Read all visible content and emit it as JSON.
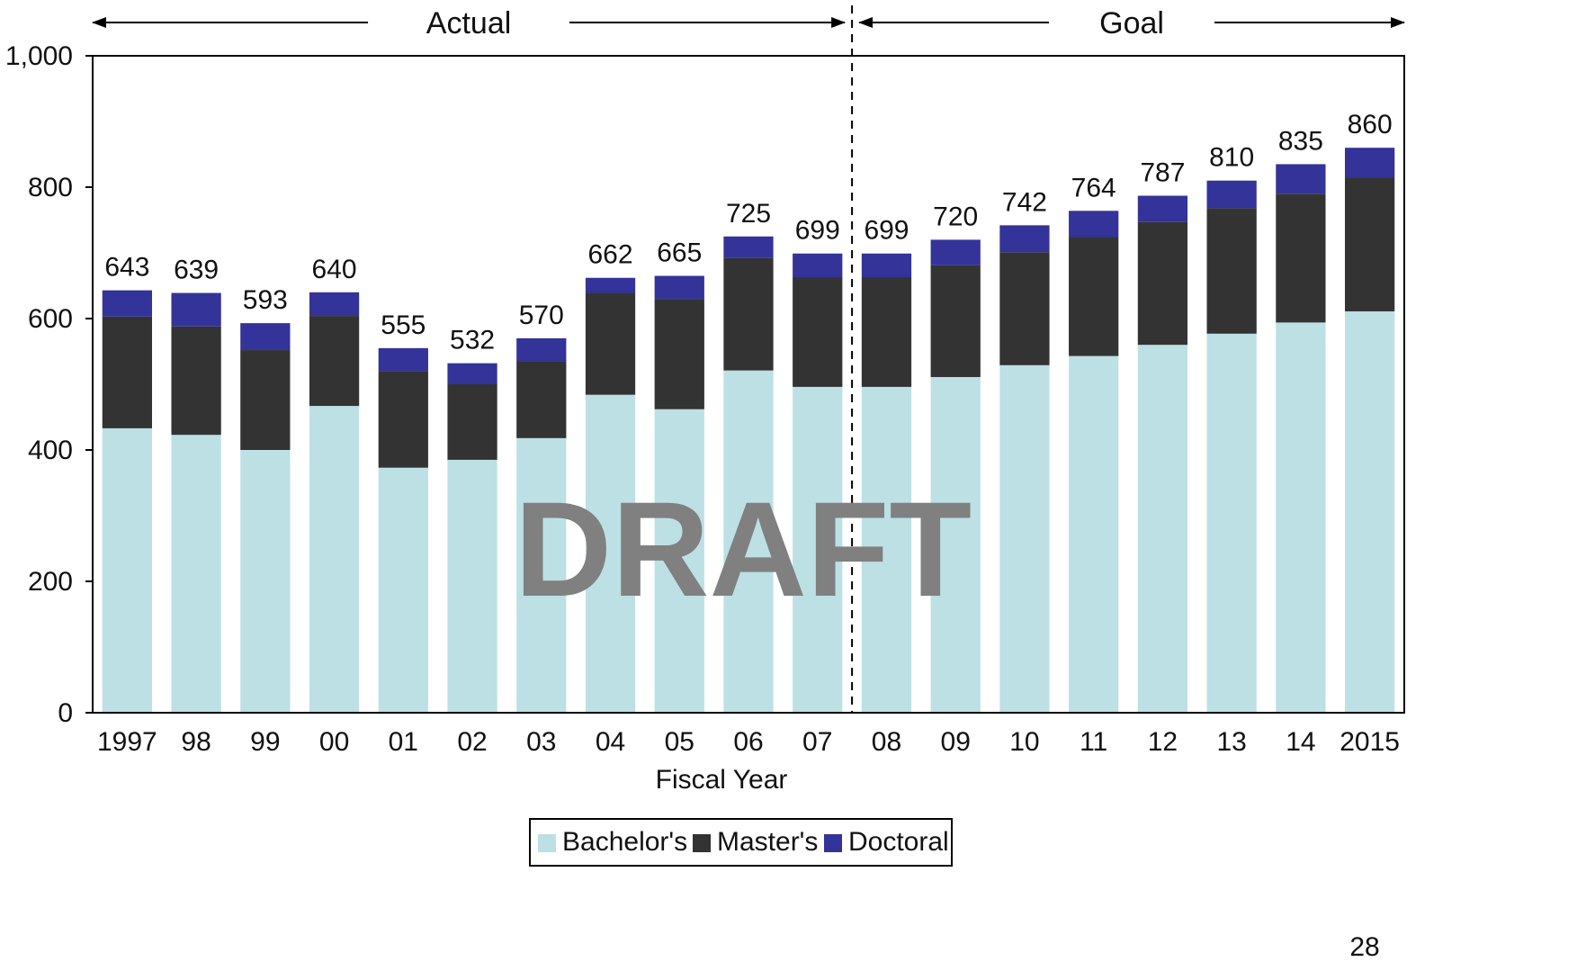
{
  "chart_data": {
    "type": "bar",
    "stacked": true,
    "xlabel": "Fiscal Year",
    "ylabel": "",
    "ylim": [
      0,
      1000
    ],
    "yticks": [
      "0",
      "200",
      "400",
      "600",
      "800",
      "1,000"
    ],
    "categories": [
      "1997",
      "98",
      "99",
      "00",
      "01",
      "02",
      "03",
      "04",
      "05",
      "06",
      "07",
      "08",
      "09",
      "10",
      "11",
      "12",
      "13",
      "14",
      "2015"
    ],
    "series": [
      {
        "name": "Bachelor's",
        "color": "#bce0e4",
        "values": [
          433,
          423,
          400,
          467,
          373,
          385,
          418,
          484,
          462,
          521,
          496,
          496,
          511,
          529,
          543,
          560,
          577,
          594,
          611
        ]
      },
      {
        "name": "Master's",
        "color": "#333333",
        "values": [
          170,
          165,
          152,
          137,
          147,
          115,
          117,
          155,
          168,
          171,
          167,
          167,
          170,
          172,
          181,
          187,
          191,
          196,
          204
        ]
      },
      {
        "name": "Doctoral",
        "color": "#333399",
        "values": [
          40,
          51,
          41,
          36,
          35,
          32,
          35,
          23,
          35,
          33,
          36,
          36,
          39,
          41,
          40,
          40,
          42,
          45,
          45
        ]
      }
    ],
    "totals": [
      "643",
      "639",
      "593",
      "640",
      "555",
      "532",
      "570",
      "662",
      "665",
      "725",
      "699",
      "699",
      "720",
      "742",
      "764",
      "787",
      "810",
      "835",
      "860"
    ],
    "periods": [
      {
        "label": "Actual",
        "first_index": 0,
        "last_index": 10
      },
      {
        "label": "Goal",
        "first_index": 11,
        "last_index": 18
      }
    ],
    "legend_position": "bottom-center",
    "grid": false
  },
  "watermark": "DRAFT",
  "page_number": "28"
}
